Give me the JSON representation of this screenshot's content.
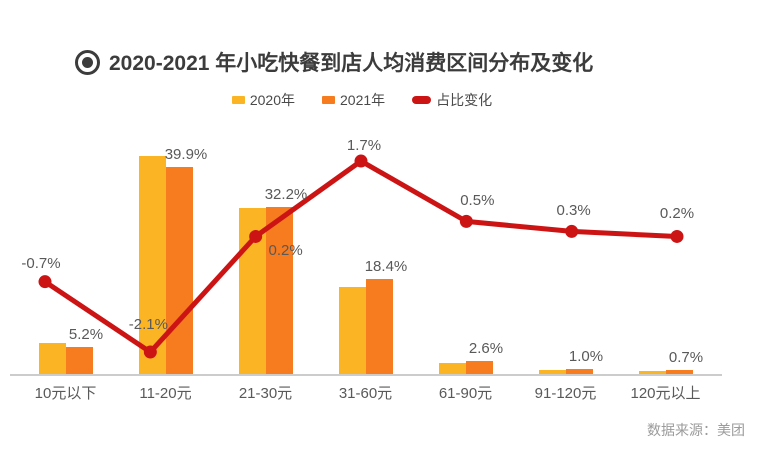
{
  "title": "2020-2021 年小吃快餐到店人均消费区间分布及变化",
  "source": "数据来源：美团",
  "chart_data": {
    "type": "bar+line",
    "title": "2020-2021 年小吃快餐到店人均消费区间分布及变化",
    "categories": [
      "10元以下",
      "11-20元",
      "21-30元",
      "31-60元",
      "61-90元",
      "91-120元",
      "120元以上"
    ],
    "series": [
      {
        "name": "2020年",
        "type": "bar",
        "color": "#FBB524",
        "values": [
          5.9,
          42.0,
          32.0,
          16.7,
          2.1,
          0.7,
          0.5
        ],
        "labels": []
      },
      {
        "name": "2021年",
        "type": "bar",
        "color": "#F67C1F",
        "values": [
          5.2,
          39.9,
          32.2,
          18.4,
          2.6,
          1.0,
          0.7
        ],
        "labels": [
          "5.2%",
          "39.9%",
          "32.2%",
          "18.4%",
          "2.6%",
          "1.0%",
          "0.7%"
        ]
      },
      {
        "name": "占比变化",
        "type": "line",
        "color": "#CC1414",
        "values": [
          -0.7,
          -2.1,
          0.2,
          1.7,
          0.5,
          0.3,
          0.2
        ],
        "labels": [
          "-0.7%",
          "-2.1%",
          "0.2%",
          "1.7%",
          "0.5%",
          "0.3%",
          "0.2%"
        ]
      }
    ],
    "xlabel": "",
    "ylabel": "",
    "ylim_bars": [
      0,
      45
    ],
    "ylim_line": [
      -2.6,
      2.0
    ],
    "grid": false,
    "legend_position": "top",
    "value_label_color": "#595959",
    "axis_line_color": "#cccccc"
  }
}
